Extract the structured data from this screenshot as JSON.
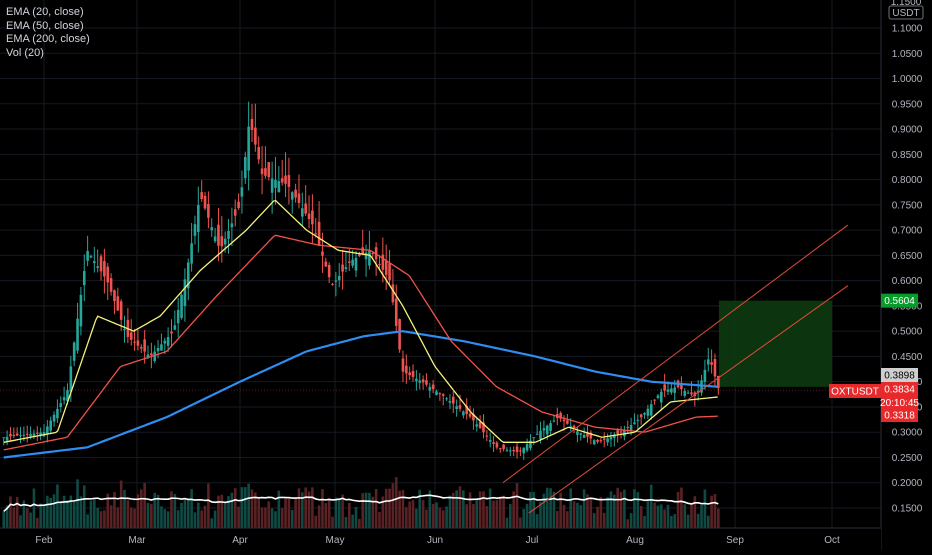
{
  "legend": {
    "items": [
      "EMA (20, close)",
      "EMA (50, close)",
      "EMA (200, close)",
      "Vol (20)"
    ]
  },
  "price_axis": {
    "currency": "USDT",
    "top_partial_label": "1.1500",
    "ticks": [
      "1.1000",
      "1.0500",
      "1.0000",
      "0.9500",
      "0.9000",
      "0.8500",
      "0.8000",
      "0.7500",
      "0.7000",
      "0.6500",
      "0.6000",
      "0.5500",
      "0.5000",
      "0.4500",
      "0.4000",
      "0.3500",
      "0.3000",
      "0.2500",
      "0.2000",
      "0.1500"
    ]
  },
  "time_axis": {
    "labels": [
      "Feb",
      "Mar",
      "Apr",
      "May",
      "Jun",
      "Jul",
      "Aug",
      "Sep",
      "Oct"
    ]
  },
  "price_tags": {
    "target": {
      "value": "0.5604",
      "color": "#089a2a"
    },
    "ema200": {
      "value": "0.3898",
      "color": "#cfcfcf"
    },
    "symbol": {
      "name": "OXTUSDT",
      "color": "#e8292b"
    },
    "last": {
      "value": "0.3834",
      "countdown": "20:10:45",
      "color": "#e8292b"
    },
    "ema50": {
      "value": "0.3318",
      "color": "#e8292b"
    }
  },
  "colors": {
    "up": "#26a69a",
    "down": "#ef5350",
    "ema20": "#f5f27a",
    "ema50": "#f2524a",
    "ema200": "#2f8cf0",
    "vol_ma": "#ffffff",
    "channel": "#e04a3a",
    "target_zone": "#0d3d12"
  },
  "chart_data": {
    "type": "candlestick",
    "symbol": "OXTUSDT",
    "interval": "1D",
    "ylim": [
      0.13,
      1.16
    ],
    "x_axis": [
      "Feb",
      "Mar",
      "Apr",
      "May",
      "Jun",
      "Jul",
      "Aug",
      "Sep",
      "Oct"
    ],
    "price_path": [
      [
        "Jan 20",
        0.29
      ],
      [
        "Feb 1",
        0.3
      ],
      [
        "Feb 8",
        0.38
      ],
      [
        "Feb 14",
        0.66
      ],
      [
        "Feb 20",
        0.6
      ],
      [
        "Feb 26",
        0.49
      ],
      [
        "Mar 5",
        0.45
      ],
      [
        "Mar 12",
        0.5
      ],
      [
        "Mar 16",
        0.62
      ],
      [
        "Mar 20",
        0.77
      ],
      [
        "Mar 26",
        0.66
      ],
      [
        "Apr 1",
        0.75
      ],
      [
        "Apr 4",
        0.92
      ],
      [
        "Apr 8",
        0.81
      ],
      [
        "Apr 16",
        0.79
      ],
      [
        "Apr 24",
        0.71
      ],
      [
        "Apr 30",
        0.59
      ],
      [
        "May 6",
        0.64
      ],
      [
        "May 12",
        0.66
      ],
      [
        "May 18",
        0.6
      ],
      [
        "May 22",
        0.42
      ],
      [
        "May 28",
        0.4
      ],
      [
        "Jun 4",
        0.37
      ],
      [
        "Jun 12",
        0.33
      ],
      [
        "Jun 20",
        0.27
      ],
      [
        "Jun 27",
        0.26
      ],
      [
        "Jul 3",
        0.3
      ],
      [
        "Jul 9",
        0.33
      ],
      [
        "Jul 15",
        0.3
      ],
      [
        "Jul 21",
        0.28
      ],
      [
        "Jul 28",
        0.3
      ],
      [
        "Aug 3",
        0.33
      ],
      [
        "Aug 9",
        0.38
      ],
      [
        "Aug 14",
        0.39
      ],
      [
        "Aug 20",
        0.37
      ],
      [
        "Aug 24",
        0.45
      ],
      [
        "Aug 27",
        0.3834
      ]
    ],
    "ema20_path": [
      [
        "Jan 20",
        0.28
      ],
      [
        "Feb 5",
        0.3
      ],
      [
        "Feb 17",
        0.53
      ],
      [
        "Feb 28",
        0.5
      ],
      [
        "Mar 8",
        0.53
      ],
      [
        "Mar 20",
        0.62
      ],
      [
        "Apr 3",
        0.7
      ],
      [
        "Apr 12",
        0.76
      ],
      [
        "Apr 22",
        0.7
      ],
      [
        "May 2",
        0.66
      ],
      [
        "May 12",
        0.65
      ],
      [
        "May 22",
        0.55
      ],
      [
        "Jun 1",
        0.43
      ],
      [
        "Jun 12",
        0.34
      ],
      [
        "Jun 22",
        0.28
      ],
      [
        "Jul 2",
        0.28
      ],
      [
        "Jul 12",
        0.31
      ],
      [
        "Jul 22",
        0.29
      ],
      [
        "Aug 1",
        0.3
      ],
      [
        "Aug 12",
        0.36
      ],
      [
        "Aug 27",
        0.37
      ]
    ],
    "ema50_path": [
      [
        "Jan 20",
        0.265
      ],
      [
        "Feb 8",
        0.29
      ],
      [
        "Feb 24",
        0.43
      ],
      [
        "Mar 10",
        0.46
      ],
      [
        "Mar 25",
        0.57
      ],
      [
        "Apr 12",
        0.69
      ],
      [
        "Apr 26",
        0.67
      ],
      [
        "May 12",
        0.66
      ],
      [
        "May 24",
        0.61
      ],
      [
        "Jun 6",
        0.48
      ],
      [
        "Jun 20",
        0.39
      ],
      [
        "Jul 4",
        0.34
      ],
      [
        "Jul 20",
        0.31
      ],
      [
        "Aug 4",
        0.3
      ],
      [
        "Aug 20",
        0.33
      ],
      [
        "Aug 27",
        0.3318
      ]
    ],
    "ema200_path": [
      [
        "Jan 20",
        0.25
      ],
      [
        "Feb 14",
        0.27
      ],
      [
        "Mar 10",
        0.33
      ],
      [
        "Apr 1",
        0.4
      ],
      [
        "Apr 22",
        0.46
      ],
      [
        "May 10",
        0.49
      ],
      [
        "May 22",
        0.5
      ],
      [
        "Jun 10",
        0.48
      ],
      [
        "Jul 2",
        0.45
      ],
      [
        "Jul 20",
        0.42
      ],
      [
        "Aug 6",
        0.4
      ],
      [
        "Aug 27",
        0.3898
      ]
    ],
    "trend_channel": {
      "upper": [
        [
          "Jun 22",
          0.2
        ],
        [
          "Aug 27",
          0.42
        ],
        [
          "Oct 6",
          0.71
        ]
      ],
      "lower": [
        [
          "Jun 30",
          0.14
        ],
        [
          "Aug 27",
          0.33
        ],
        [
          "Oct 6",
          0.59
        ]
      ]
    },
    "target_zone": {
      "from": "Aug 27",
      "to": "Oct 1",
      "low": 0.3898,
      "high": 0.5604
    },
    "volume": {
      "peak_month": "Apr",
      "ma_length": 20
    }
  }
}
